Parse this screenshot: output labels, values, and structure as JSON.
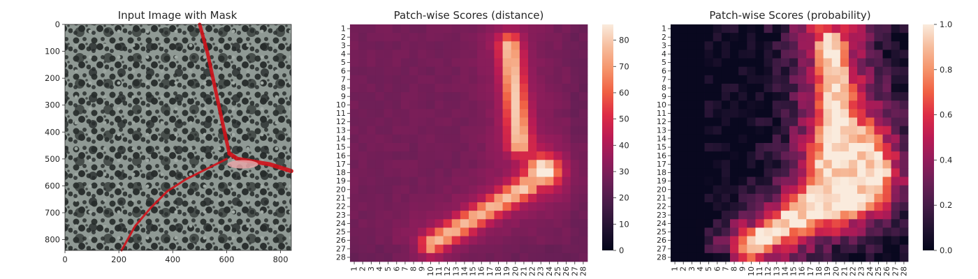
{
  "chart_data": [
    {
      "type": "image",
      "title": "Input Image with Mask",
      "xlim": [
        0,
        840
      ],
      "ylim": [
        840,
        0
      ],
      "xticks": [
        0,
        200,
        400,
        600,
        800
      ],
      "yticks": [
        0,
        100,
        200,
        300,
        400,
        500,
        600,
        700,
        800
      ],
      "mask_color": "#d0121a",
      "background_colors": [
        "#8a948f",
        "#2e3432"
      ],
      "mask_path_points": [
        [
          500,
          0
        ],
        [
          530,
          110
        ],
        [
          560,
          250
        ],
        [
          590,
          390
        ],
        [
          610,
          480
        ],
        [
          640,
          500
        ],
        [
          700,
          510
        ],
        [
          760,
          520
        ],
        [
          840,
          545
        ],
        [
          600,
          500
        ],
        [
          520,
          540
        ],
        [
          450,
          575
        ],
        [
          380,
          620
        ],
        [
          320,
          680
        ],
        [
          260,
          750
        ],
        [
          210,
          840
        ]
      ]
    },
    {
      "type": "heatmap",
      "title": "Patch-wise Scores (distance)",
      "rows": 28,
      "cols": 28,
      "tick_labels": [
        "1",
        "2",
        "3",
        "4",
        "5",
        "6",
        "7",
        "8",
        "9",
        "10",
        "11",
        "12",
        "13",
        "14",
        "15",
        "16",
        "17",
        "18",
        "19",
        "20",
        "21",
        "22",
        "23",
        "24",
        "25",
        "26",
        "27",
        "28"
      ],
      "colorbar": {
        "min": 0,
        "max": 86,
        "ticks": [
          0,
          10,
          20,
          30,
          40,
          50,
          60,
          70,
          80
        ]
      },
      "background_value": 28,
      "anomaly_peak_value": 86,
      "anomaly_structure": {
        "description_values": "vertical band cols 18-20 rows 3-14, peak blob rows 16-20 cols 20-25, diagonal band from row 20 col 20 to row 28 col 8",
        "band_value": 68,
        "peak_value": 86,
        "diag_value": 62
      }
    },
    {
      "type": "heatmap",
      "title": "Patch-wise Scores (probability)",
      "rows": 28,
      "cols": 28,
      "tick_labels": [
        "1",
        "2",
        "3",
        "4",
        "5",
        "6",
        "7",
        "8",
        "9",
        "10",
        "11",
        "12",
        "13",
        "14",
        "15",
        "16",
        "17",
        "18",
        "19",
        "20",
        "21",
        "22",
        "23",
        "24",
        "25",
        "26",
        "27",
        "28"
      ],
      "colorbar": {
        "min": 0.0,
        "max": 1.0,
        "ticks": [
          "0.0",
          "0.2",
          "0.4",
          "0.6",
          "0.8",
          "1.0"
        ]
      },
      "background_value": 0.02,
      "anomaly_peak_value": 1.0
    }
  ]
}
